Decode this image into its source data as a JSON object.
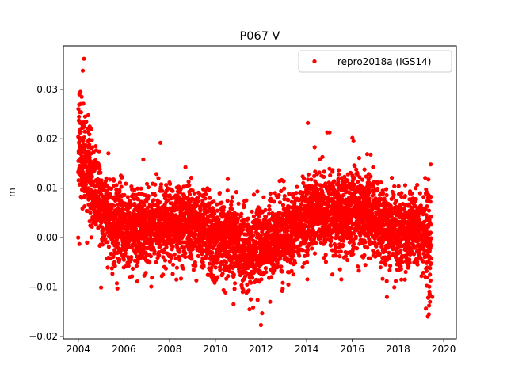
{
  "chart_data": {
    "type": "scatter",
    "title": "P067 V",
    "xlabel": "",
    "ylabel": "m",
    "xlim": [
      2003.35,
      2020.55
    ],
    "ylim": [
      -0.0205,
      0.0388
    ],
    "x_ticks": [
      2004,
      2006,
      2008,
      2010,
      2012,
      2014,
      2016,
      2018,
      2020
    ],
    "x_tick_labels": [
      "2004",
      "2006",
      "2008",
      "2010",
      "2012",
      "2014",
      "2016",
      "2018",
      "2020"
    ],
    "y_ticks": [
      -0.02,
      -0.01,
      0.0,
      0.01,
      0.02,
      0.03
    ],
    "y_tick_labels": [
      "−0.02",
      "−0.01",
      "0.00",
      "0.01",
      "0.02",
      "0.03"
    ],
    "legend": {
      "placement": "top-right",
      "entries": [
        "repro2018a (IGS14)"
      ]
    },
    "grid": false,
    "series": [
      {
        "name": "repro2018a (IGS14)",
        "color": "#ff0000",
        "marker": "circle",
        "trend": [
          [
            2004.0,
            0.018
          ],
          [
            2004.3,
            0.014
          ],
          [
            2004.6,
            0.01
          ],
          [
            2005.0,
            0.006
          ],
          [
            2005.5,
            0.003
          ],
          [
            2006.0,
            0.002
          ],
          [
            2006.5,
            0.002
          ],
          [
            2007.0,
            0.002
          ],
          [
            2007.5,
            0.002
          ],
          [
            2008.0,
            0.003
          ],
          [
            2008.5,
            0.003
          ],
          [
            2009.0,
            0.003
          ],
          [
            2009.5,
            0.002
          ],
          [
            2010.0,
            0.0
          ],
          [
            2010.5,
            0.0
          ],
          [
            2011.0,
            -0.001
          ],
          [
            2011.3,
            -0.003
          ],
          [
            2011.6,
            -0.003
          ],
          [
            2012.0,
            -0.001
          ],
          [
            2012.5,
            0.0
          ],
          [
            2013.0,
            0.001
          ],
          [
            2013.5,
            0.002
          ],
          [
            2014.0,
            0.004
          ],
          [
            2014.5,
            0.006
          ],
          [
            2015.0,
            0.005
          ],
          [
            2015.5,
            0.004
          ],
          [
            2016.0,
            0.005
          ],
          [
            2016.5,
            0.005
          ],
          [
            2017.0,
            0.004
          ],
          [
            2017.5,
            0.002
          ],
          [
            2018.0,
            0.001
          ],
          [
            2018.5,
            0.002
          ],
          [
            2019.0,
            0.001
          ],
          [
            2019.3,
            0.0
          ],
          [
            2019.45,
            -0.002
          ]
        ],
        "scatter_sd": 0.0038,
        "x_range": [
          2004.0,
          2019.45
        ],
        "num_points": 5200,
        "outliers": [
          [
            2004.25,
            0.0362
          ],
          [
            2004.2,
            0.0338
          ],
          [
            2004.1,
            0.0295
          ],
          [
            2004.05,
            0.029
          ],
          [
            2004.15,
            0.0285
          ],
          [
            2004.3,
            0.0245
          ],
          [
            2004.35,
            0.0235
          ],
          [
            2004.5,
            0.0225
          ],
          [
            2007.6,
            0.0192
          ],
          [
            2006.85,
            0.0158
          ],
          [
            2005.0,
            -0.0101
          ],
          [
            2004.05,
            -0.0013
          ],
          [
            2004.0,
            0.0
          ],
          [
            2014.05,
            0.0232
          ],
          [
            2014.9,
            0.0213
          ],
          [
            2015.0,
            0.0213
          ],
          [
            2016.0,
            0.0202
          ],
          [
            2016.05,
            0.0195
          ],
          [
            2016.8,
            0.0168
          ],
          [
            2014.35,
            0.0183
          ],
          [
            2012.0,
            -0.0177
          ],
          [
            2011.5,
            -0.0145
          ],
          [
            2011.55,
            -0.0125
          ],
          [
            2012.4,
            -0.013
          ],
          [
            2019.3,
            -0.016
          ],
          [
            2019.35,
            -0.0155
          ],
          [
            2019.4,
            -0.013
          ],
          [
            2019.5,
            -0.012
          ],
          [
            2018.3,
            -0.0085
          ],
          [
            2017.9,
            -0.0088
          ],
          [
            2008.3,
            -0.0085
          ],
          [
            2008.5,
            -0.0083
          ],
          [
            2013.2,
            -0.0095
          ],
          [
            2011.2,
            -0.011
          ]
        ]
      }
    ]
  }
}
